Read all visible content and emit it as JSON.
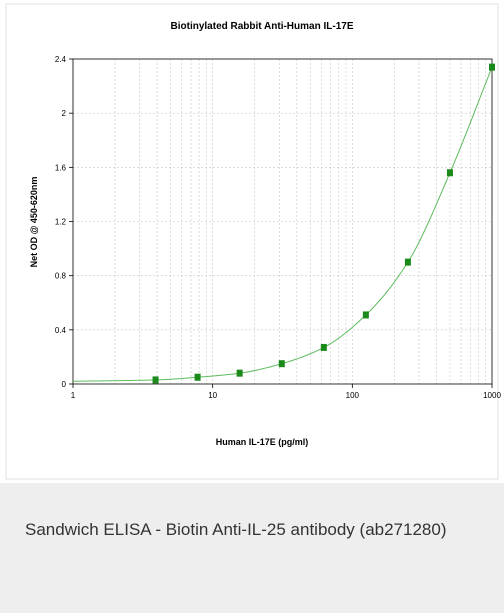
{
  "chart_data": {
    "type": "line",
    "title": "Biotinylated Rabbit Anti-Human IL-17E",
    "xlabel": "Human IL-17E (pg/ml)",
    "ylabel": "Net OD @ 450-620nm",
    "x_scale": "log",
    "xlim": [
      1,
      1000
    ],
    "ylim": [
      0,
      2.4
    ],
    "x_tick_labels": [
      "1",
      "10",
      "100",
      "1000"
    ],
    "y_tick_labels": [
      "0",
      "0.4",
      "0.8",
      "1.2",
      "1.6",
      "2",
      "2.4"
    ],
    "grid": true,
    "series": [
      {
        "x": [
          3.9,
          7.8,
          15.6,
          31.25,
          62.5,
          125,
          250,
          500,
          1000
        ],
        "y": [
          0.03,
          0.05,
          0.08,
          0.15,
          0.27,
          0.51,
          0.9,
          1.56,
          2.34
        ],
        "color": "#1a8a1a",
        "marker": "square"
      }
    ],
    "fit_color": "#5dbb5d"
  },
  "caption": {
    "text": "Sandwich ELISA - Biotin Anti-IL-25 antibody (ab271280)"
  }
}
